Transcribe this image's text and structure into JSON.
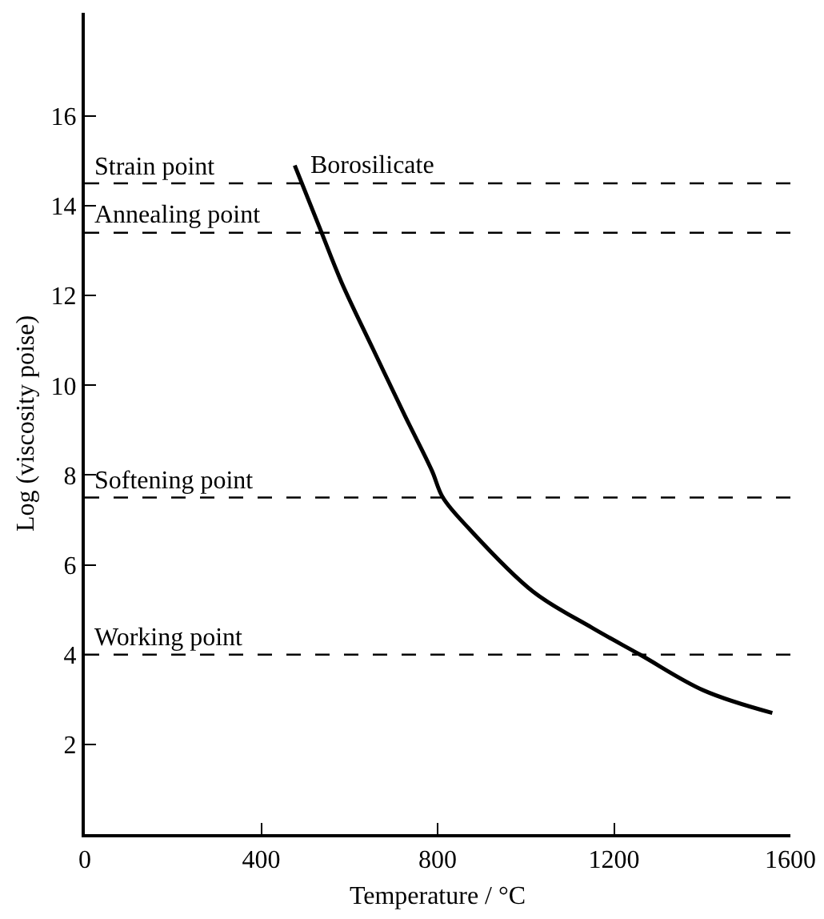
{
  "chart_data": {
    "type": "line",
    "xlabel": "Temperature / °C",
    "ylabel": "Log (viscosity poise)",
    "x": [
      476,
      533,
      582,
      654,
      727,
      787,
      812,
      872,
      1017,
      1150,
      1259,
      1404,
      1559
    ],
    "series": [
      {
        "name": "Borosilicate",
        "color": "#000000",
        "values": [
          14.9,
          13.5,
          12.3,
          10.8,
          9.3,
          8.1,
          7.5,
          6.8,
          5.4,
          4.6,
          4.0,
          3.2,
          2.7
        ]
      }
    ],
    "xlim": [
      0,
      1600
    ],
    "xticks": [
      0,
      400,
      800,
      1200,
      1600
    ],
    "ylim": [
      0,
      18.3
    ],
    "yticks": [
      2,
      4,
      6,
      8,
      10,
      12,
      14,
      16
    ],
    "ref_lines": [
      {
        "axis": "y",
        "value": 14.5,
        "label": "Strain point",
        "color": "#000000",
        "line_style": "dashed"
      },
      {
        "axis": "y",
        "value": 13.4,
        "label": "Annealing point",
        "color": "#000000",
        "line_style": "dashed"
      },
      {
        "axis": "y",
        "value": 7.5,
        "label": "Softening point",
        "color": "#000000",
        "line_style": "dashed"
      },
      {
        "axis": "y",
        "value": 4.0,
        "label": "Working point",
        "color": "#000000",
        "line_style": "dashed"
      }
    ],
    "grid": false,
    "legend": false,
    "marker": "none",
    "line_style": "solid"
  }
}
